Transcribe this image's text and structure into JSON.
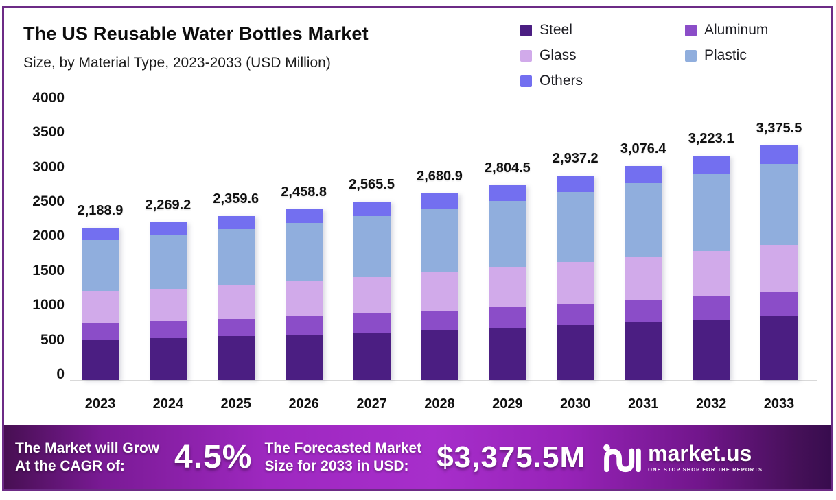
{
  "header": {
    "title": "The US Reusable Water Bottles Market",
    "subtitle": "Size, by Material Type, 2023-2033 (USD Million)"
  },
  "colors": {
    "steel": "#4b1e82",
    "aluminum": "#8b4dc8",
    "glass": "#d1aaea",
    "plastic": "#90aedd",
    "others": "#736ff0",
    "border": "#6c2b86",
    "banner_center": "#a72ecb",
    "banner_edge": "#3c0d52",
    "axis_line": "#d9d9d9"
  },
  "legend": [
    {
      "label": "Steel",
      "color": "#4b1e82"
    },
    {
      "label": "Aluminum",
      "color": "#8b4dc8"
    },
    {
      "label": "Glass",
      "color": "#d1aaea"
    },
    {
      "label": "Plastic",
      "color": "#90aedd"
    },
    {
      "label": "Others",
      "color": "#736ff0"
    }
  ],
  "chart_data": {
    "type": "bar",
    "stacked": true,
    "title": "The US Reusable Water Bottles Market",
    "subtitle": "Size, by Material Type, 2023-2033 (USD Million)",
    "xlabel": "",
    "ylabel": "USD Million",
    "ylim": [
      0,
      4000
    ],
    "yticks": [
      0,
      500,
      1000,
      1500,
      2000,
      2500,
      3000,
      3500,
      4000
    ],
    "grid": false,
    "legend_position": "top-right",
    "categories": [
      "2023",
      "2024",
      "2025",
      "2026",
      "2027",
      "2028",
      "2029",
      "2030",
      "2031",
      "2032",
      "2033"
    ],
    "series": [
      {
        "name": "Steel",
        "color": "#4b1e82",
        "values": [
          580.0,
          602.6,
          628.0,
          655.8,
          685.8,
          718.2,
          753.0,
          790.3,
          829.5,
          870.9,
          914.0
        ]
      },
      {
        "name": "Aluminum",
        "color": "#8b4dc8",
        "values": [
          235.0,
          242.5,
          251.0,
          260.3,
          270.4,
          281.2,
          292.8,
          305.2,
          318.2,
          331.8,
          346.0
        ]
      },
      {
        "name": "Glass",
        "color": "#d1aaea",
        "values": [
          455.0,
          470.4,
          487.7,
          506.8,
          527.3,
          549.4,
          573.1,
          598.5,
          625.1,
          653.0,
          682.0
        ]
      },
      {
        "name": "Plastic",
        "color": "#90aedd",
        "values": [
          740.0,
          769.1,
          801.8,
          837.7,
          876.2,
          917.9,
          962.6,
          1010.7,
          1061.2,
          1114.6,
          1170.0
        ]
      },
      {
        "name": "Others",
        "color": "#736ff0",
        "values": [
          178.9,
          184.6,
          191.1,
          198.2,
          205.8,
          214.2,
          223.0,
          232.5,
          242.4,
          252.8,
          263.5
        ]
      }
    ],
    "totals": [
      2188.9,
      2269.2,
      2359.6,
      2458.8,
      2565.5,
      2680.9,
      2804.5,
      2937.2,
      3076.4,
      3223.1,
      3375.5
    ],
    "totals_formatted": [
      "2,188.9",
      "2,269.2",
      "2,359.6",
      "2,458.8",
      "2,565.5",
      "2,680.9",
      "2,804.5",
      "2,937.2",
      "3,076.4",
      "3,223.1",
      "3,375.5"
    ]
  },
  "footer": {
    "cagr_label_line1": "The Market will Grow",
    "cagr_label_line2": "At the CAGR of:",
    "cagr_value": "4.5%",
    "forecast_label_line1": "The Forecasted Market",
    "forecast_label_line2": "Size for 2033 in USD:",
    "forecast_value": "$3,375.5M",
    "brand": "market.us",
    "brand_tagline": "ONE STOP SHOP FOR THE REPORTS"
  }
}
